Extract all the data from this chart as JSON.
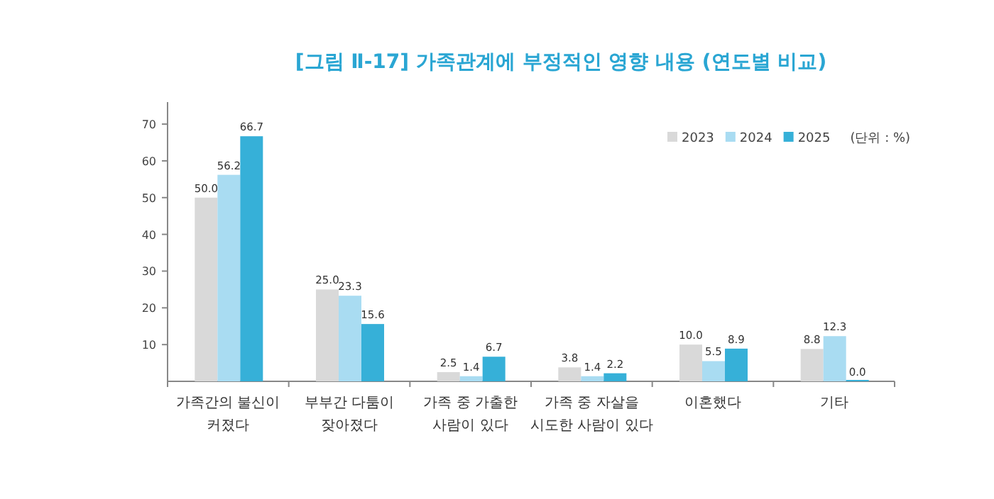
{
  "chart_data": {
    "type": "bar",
    "title": "[그림 Ⅱ-17] 가족관계에 부정적인 영향 내용 (연도별 비교)",
    "categories": [
      "가족간의 불신이\n커졌다",
      "부부간 다툼이\n잦아졌다",
      "가족 중 가출한\n사람이 있다",
      "가족 중 자살을\n시도한 사람이 있다",
      "이혼했다",
      "기타"
    ],
    "series": [
      {
        "name": "2023",
        "color": "#d9d9d9",
        "values": [
          50.0,
          25.0,
          2.5,
          3.8,
          10.0,
          8.8
        ],
        "value_labels": [
          "50.0",
          "25.0",
          "2.5",
          "3.8",
          "10.0",
          "8.8"
        ]
      },
      {
        "name": "2024",
        "color": "#a9dcf2",
        "values": [
          56.2,
          23.3,
          1.4,
          1.4,
          5.5,
          12.3
        ],
        "value_labels": [
          "56.2",
          "23.3",
          "1.4",
          "1.4",
          "5.5",
          "12.3"
        ]
      },
      {
        "name": "2025",
        "color": "#36b0d8",
        "values": [
          66.7,
          15.6,
          6.7,
          2.2,
          8.9,
          0.0
        ],
        "value_labels": [
          "66.7",
          "15.6",
          "6.7",
          "2.2",
          "8.9",
          "0.0"
        ]
      }
    ],
    "ylim": [
      0,
      76
    ],
    "yticks": [
      10,
      20,
      30,
      40,
      50,
      60,
      70
    ],
    "legend": "top right",
    "annotations": [
      "(단위 : %)"
    ]
  }
}
